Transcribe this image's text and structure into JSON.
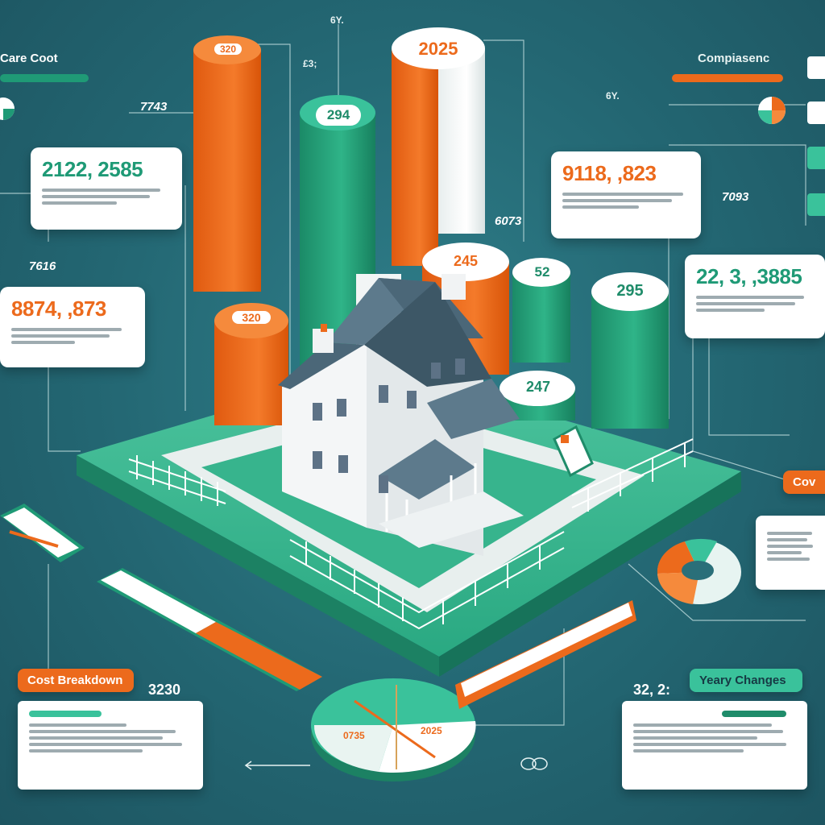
{
  "title_left": "Care Coot",
  "title_right": "Compiasenc",
  "bar_labels": [
    "320",
    "294",
    "2025",
    "245",
    "52",
    "295",
    "320",
    "247"
  ],
  "card_top_left": {
    "number": "2122, 2585"
  },
  "card_mid_left": {
    "number": "8874, ,873"
  },
  "card_top_right": {
    "number": "9118, ,823"
  },
  "card_mid_right": {
    "number": "22, 3, ,3885"
  },
  "side_numbers": [
    "7743",
    "7616",
    "6073",
    "7093",
    "3230",
    "32, 2:"
  ],
  "small_marks": [
    "6Y.",
    "6Y.",
    "£3;"
  ],
  "cost_breakdown": {
    "label": "Cost Breakdown"
  },
  "yearly_changes": {
    "label": "Yeary Changes"
  },
  "side_tag_right": "Cov",
  "pie_labels": [
    "0735",
    "2025"
  ],
  "colors": {
    "orange": "#ec6a1c",
    "teal": "#2aa982",
    "green_dark": "#1f8c6a",
    "bg": "#236672"
  },
  "icons": [
    "house-illustration",
    "pie-chart-icon",
    "donut-chart-icon",
    "link-icon",
    "arrow-icon"
  ]
}
